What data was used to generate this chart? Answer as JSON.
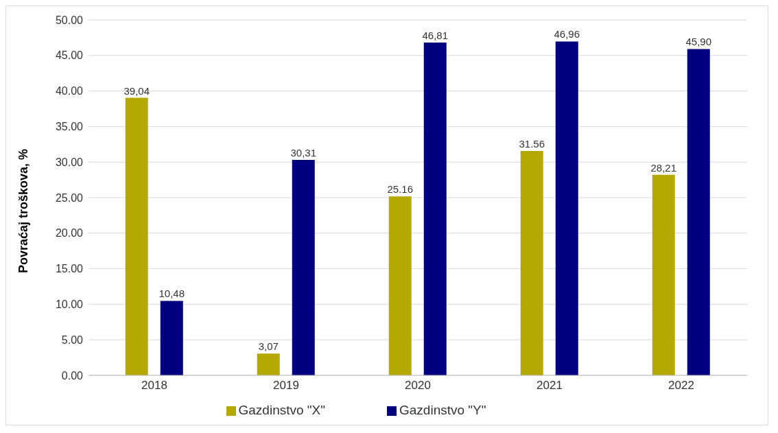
{
  "chart_data": {
    "type": "bar",
    "ylabel": "Povraćaj troškova, %",
    "categories": [
      "2018",
      "2019",
      "2020",
      "2021",
      "2022"
    ],
    "series": [
      {
        "name": "Gazdinstvo \"X\"",
        "color": "#b5a800",
        "values": [
          39.04,
          3.07,
          25.16,
          31.56,
          28.21
        ],
        "value_labels": [
          "39,04",
          "3,07",
          "25.16",
          "31.56",
          "28,21"
        ]
      },
      {
        "name": "Gazdinstvo \"Y\"",
        "color": "#00007f",
        "values": [
          10.48,
          30.31,
          46.81,
          46.96,
          45.9
        ],
        "value_labels": [
          "10,48",
          "30,31",
          "46,81",
          "46,96",
          "45,90"
        ]
      }
    ],
    "ylim": [
      0,
      50
    ],
    "yticks": [
      {
        "value": 0,
        "label": "0.00"
      },
      {
        "value": 5,
        "label": "5.00"
      },
      {
        "value": 10,
        "label": "10.00"
      },
      {
        "value": 15,
        "label": "15.00"
      },
      {
        "value": 20,
        "label": "20.00"
      },
      {
        "value": 25,
        "label": "25.00"
      },
      {
        "value": 30,
        "label": "30.00"
      },
      {
        "value": 35,
        "label": "35.00"
      },
      {
        "value": 40,
        "label": "40.00"
      },
      {
        "value": 45,
        "label": "45.00"
      },
      {
        "value": 50,
        "label": "50.00"
      }
    ],
    "grid": "y",
    "legend": "bottom"
  }
}
